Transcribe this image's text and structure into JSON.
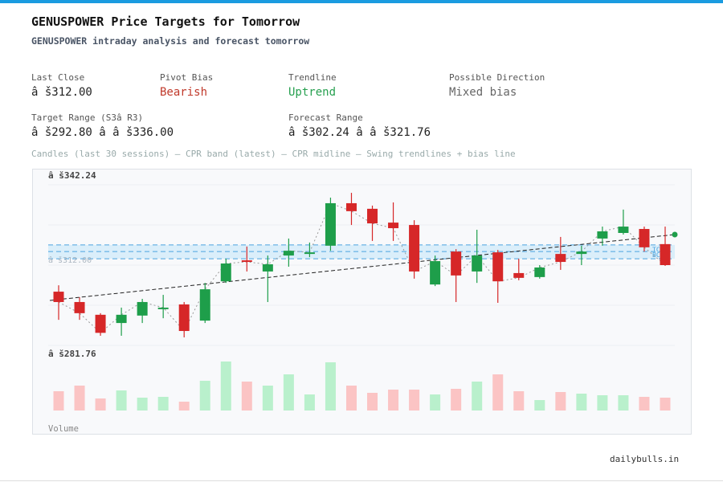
{
  "header": {
    "title": "GENUSPOWER Price Targets for Tomorrow",
    "subtitle": "GENUSPOWER intraday analysis and forecast tomorrow"
  },
  "stats": [
    {
      "label": "Last Close",
      "value": "â š312.00"
    },
    {
      "label": "Pivot Bias",
      "value": "Bearish"
    },
    {
      "label": "Trendline",
      "value": "Uptrend"
    },
    {
      "label": "Possible Direction",
      "value": "Mixed bias"
    },
    {
      "label": "Target Range (S3â  R3)",
      "value": "â š292.80 â   â š336.00"
    },
    {
      "label": "Forecast Range",
      "value": "â š302.24 â   â š321.76"
    }
  ],
  "caption": "Candles (last 30 sessions) – CPR band (latest) – CPR midline – Swing trendlines + bias line",
  "chart_data": {
    "type": "candlestick",
    "open": [
      302.0,
      298.1,
      293.3,
      290.2,
      293.0,
      295.4,
      297.2,
      291.1,
      305.9,
      313.8,
      309.6,
      315.6,
      316.2,
      319.3,
      335.3,
      333.2,
      328.0,
      327.1,
      304.7,
      317.1,
      309.6,
      316.8,
      309.0,
      307.5,
      316.2,
      316.2,
      322.0,
      324.1,
      325.6,
      319.9
    ],
    "high": [
      304.4,
      299.9,
      293.9,
      296.0,
      299.3,
      300.8,
      298.1,
      305.3,
      314.4,
      319.0,
      315.6,
      322.0,
      320.5,
      337.4,
      339.2,
      334.4,
      335.6,
      328.9,
      315.6,
      318.0,
      325.3,
      317.7,
      314.4,
      312.0,
      322.6,
      319.3,
      326.5,
      332.9,
      326.5,
      326.5
    ],
    "low": [
      291.4,
      291.4,
      285.4,
      285.4,
      290.2,
      292.0,
      284.8,
      290.2,
      305.3,
      309.6,
      298.1,
      311.4,
      315.0,
      317.4,
      327.1,
      321.1,
      321.1,
      306.9,
      304.1,
      298.1,
      305.3,
      297.8,
      306.3,
      306.9,
      310.2,
      312.0,
      319.3,
      323.5,
      317.1,
      311.7
    ],
    "close": [
      298.1,
      293.9,
      286.5,
      293.3,
      298.1,
      296.0,
      287.2,
      302.9,
      312.6,
      313.2,
      312.3,
      317.4,
      316.8,
      335.3,
      332.3,
      327.7,
      325.9,
      309.6,
      313.5,
      308.1,
      315.6,
      305.9,
      307.2,
      311.1,
      313.2,
      317.1,
      324.7,
      326.5,
      318.7,
      312.0
    ],
    "volume": [
      24,
      31,
      15,
      25,
      16,
      17,
      11,
      37,
      61,
      36,
      31,
      45,
      20,
      60,
      31,
      22,
      26,
      26,
      20,
      27,
      36,
      45,
      24,
      13,
      23,
      21,
      19,
      19,
      17,
      16
    ],
    "volume_label": "Volume",
    "up_color": "#1e9e4a",
    "down_color": "#d62728",
    "volume_up_color": "#b9f0cc",
    "volume_down_color": "#fbc4c4",
    "ylim": [
      281.76,
      342.24
    ],
    "yticks": [
      {
        "value": 342.24,
        "label": "â š342.24"
      },
      {
        "value": 281.76,
        "label": "â š281.76"
      }
    ],
    "reference": {
      "value": 312.0,
      "label": "â š312.00"
    },
    "cpr": {
      "tc": 319.6,
      "pivot": 317.1,
      "bc": 314.4,
      "tc_label": "TC",
      "bc_label": "BC"
    },
    "trendline": {
      "start": 298.7,
      "end": 323.5
    },
    "bias_color": "#1e9e4a"
  },
  "footer": "dailybulls.in"
}
